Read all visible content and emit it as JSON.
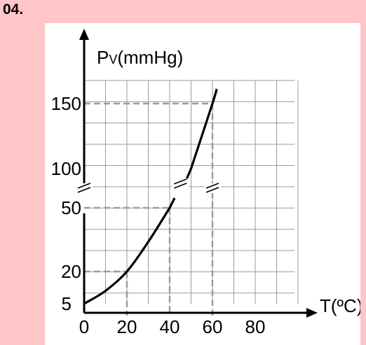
{
  "question": {
    "number": "04."
  },
  "chart_data": {
    "type": "line",
    "ylabel": "Pv(mmHg)",
    "ylabel_main": "P",
    "ylabel_sub": "V",
    "ylabel_unit": "(mmHg)",
    "xlabel": "T(ºC)",
    "x_ticks": [
      "0",
      "20",
      "40",
      "60",
      "80"
    ],
    "y_ticks": [
      "5",
      "20",
      "50",
      "100",
      "150"
    ],
    "xlim": [
      0,
      100
    ],
    "axis_break": "between 50 and 100",
    "grid": true,
    "series": [
      {
        "x": [
          0,
          10,
          20,
          30,
          40,
          50,
          60,
          62
        ],
        "y": [
          5,
          11,
          20,
          34,
          50,
          100,
          150,
          161
        ]
      }
    ],
    "reference_points": [
      {
        "x": 20,
        "y": 20
      },
      {
        "x": 40,
        "y": 50
      },
      {
        "x": 60,
        "y": 150
      }
    ]
  }
}
